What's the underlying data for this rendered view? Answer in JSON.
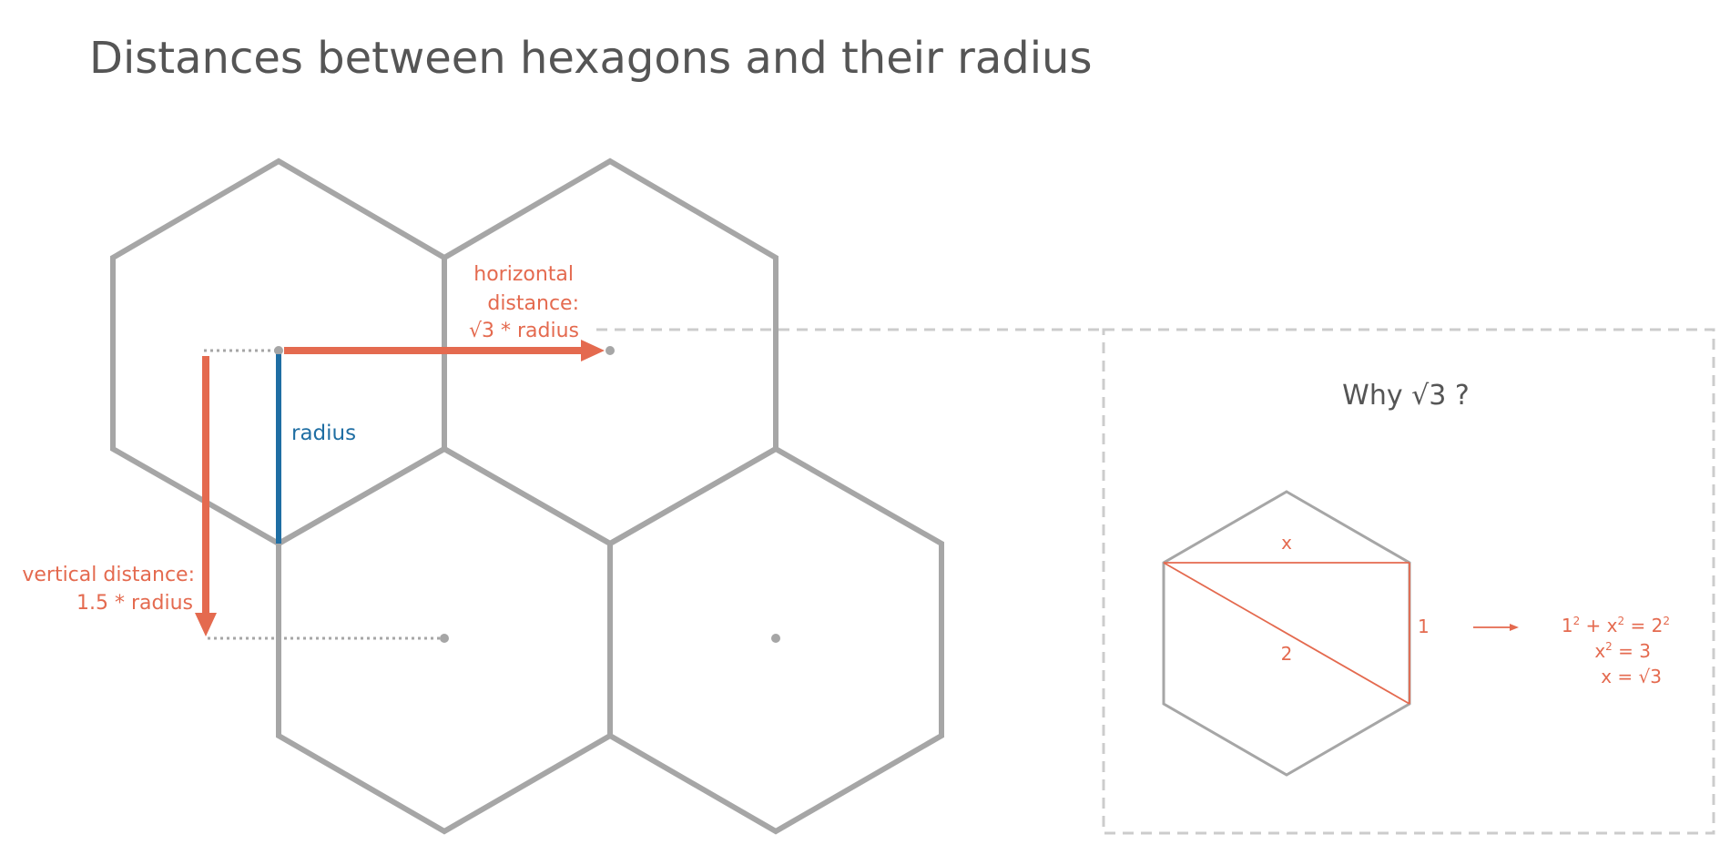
{
  "title": "Distances between hexagons and their radius",
  "labels": {
    "horizontal_line1": "horizontal",
    "horizontal_line2": "distance:",
    "horizontal_line3": "√3 * radius",
    "radius": "radius",
    "vertical_line1": "vertical distance:",
    "vertical_line2": "1.5 * radius"
  },
  "inset": {
    "title": "Why √3 ?",
    "side_x": "x",
    "side_1": "1",
    "side_2": "2",
    "eq1_base1": "1",
    "eq1_exp1": "2",
    "eq1_mid": " + x",
    "eq1_exp2": "2",
    "eq1_eq": " = 2",
    "eq1_exp3": "2",
    "eq2_base": "x",
    "eq2_exp": "2",
    "eq2_rest": " = 3",
    "eq3": "x = √3"
  },
  "colors": {
    "hex_stroke": "#a6a6a6",
    "accent_red": "#e46a4f",
    "accent_blue": "#1f6ea3",
    "title_text": "#555555"
  }
}
